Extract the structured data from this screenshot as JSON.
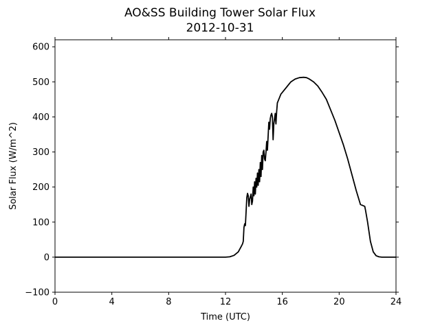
{
  "chart_data": {
    "type": "line",
    "title": "AO&SS Building Tower Solar Flux",
    "subtitle": "2012-10-31",
    "xlabel": "Time (UTC)",
    "ylabel": "Solar Flux (W/m^2)",
    "xlim": [
      0,
      24
    ],
    "ylim": [
      -100,
      620
    ],
    "xticks": [
      0,
      4,
      8,
      12,
      16,
      20,
      24
    ],
    "yticks": [
      -100,
      0,
      100,
      200,
      300,
      400,
      500,
      600
    ],
    "grid": false,
    "line_color": "#000000",
    "series": [
      {
        "x": [
          0,
          4,
          8,
          12,
          12.3,
          12.6,
          12.9,
          13.1,
          13.2,
          13.25,
          13.3,
          13.35,
          13.4,
          13.5,
          13.55,
          13.6,
          13.65,
          13.7,
          13.8,
          13.85,
          13.9,
          13.95,
          14.0,
          14.05,
          14.1,
          14.15,
          14.2,
          14.25,
          14.3,
          14.35,
          14.4,
          14.45,
          14.5,
          14.55,
          14.6,
          14.65,
          14.7,
          14.75,
          14.8,
          14.85,
          14.9,
          14.95,
          15.0,
          15.05,
          15.1,
          15.15,
          15.2,
          15.25,
          15.3,
          15.35,
          15.4,
          15.45,
          15.5,
          15.55,
          15.6,
          15.65,
          15.7,
          15.8,
          15.9,
          16.0,
          16.3,
          16.6,
          16.9,
          17.2,
          17.5,
          17.7,
          17.9,
          18.2,
          18.5,
          18.8,
          19.1,
          19.4,
          19.7,
          20.0,
          20.3,
          20.6,
          20.9,
          21.2,
          21.5,
          21.8,
          21.85,
          22.0,
          22.2,
          22.4,
          22.6,
          22.8,
          23.0,
          23.5,
          24.0
        ],
        "y": [
          0,
          0,
          0,
          0,
          1,
          5,
          15,
          30,
          38,
          45,
          85,
          95,
          90,
          170,
          182,
          175,
          145,
          165,
          180,
          150,
          160,
          200,
          175,
          215,
          180,
          225,
          200,
          240,
          205,
          250,
          215,
          270,
          230,
          290,
          250,
          300,
          305,
          280,
          275,
          300,
          330,
          305,
          345,
          385,
          365,
          395,
          405,
          410,
          400,
          335,
          380,
          395,
          410,
          380,
          415,
          440,
          445,
          455,
          465,
          470,
          485,
          500,
          508,
          512,
          513,
          512,
          508,
          500,
          488,
          470,
          450,
          420,
          390,
          355,
          320,
          280,
          235,
          190,
          150,
          145,
          135,
          100,
          45,
          15,
          4,
          1,
          0,
          0,
          0
        ]
      }
    ]
  }
}
